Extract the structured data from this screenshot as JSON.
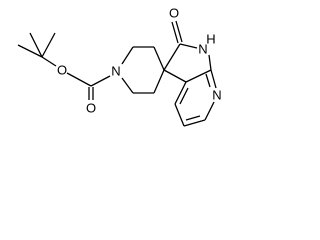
{
  "atoms": [
    {
      "label": "O"
    },
    {
      "label": "N"
    },
    {
      "label": "H"
    },
    {
      "label": "N"
    },
    {
      "label": "N"
    },
    {
      "label": "O"
    },
    {
      "label": "O"
    }
  ]
}
